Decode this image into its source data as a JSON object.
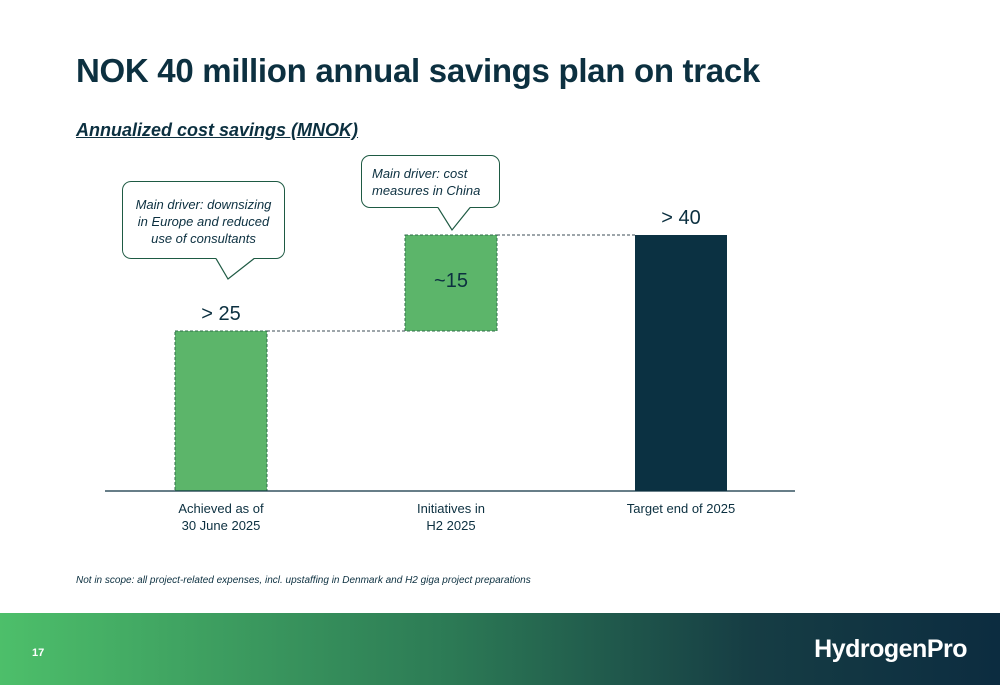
{
  "page": {
    "title": "NOK 40 million annual savings plan on track",
    "subtitle": "Annualized cost savings (MNOK)",
    "footnote": "Not in scope: all project-related expenses, incl. upstaffing in Denmark and H2 giga project preparations",
    "page_number": "17",
    "logo": "HydrogenPro"
  },
  "callouts": [
    {
      "text": "Main driver: downsizing in Europe and reduced use of consultants"
    },
    {
      "text": "Main driver: cost measures in China"
    }
  ],
  "chart_data": {
    "type": "bar",
    "subtype": "waterfall",
    "categories": [
      "Achieved as of 30 June 2025",
      "Initiatives in H2 2025",
      "Target end of 2025"
    ],
    "category_lines": [
      [
        "Achieved as of",
        "30 June 2025"
      ],
      [
        "Initiatives in",
        "H2 2025"
      ],
      [
        "Target end of 2025"
      ]
    ],
    "values": [
      25,
      15,
      40
    ],
    "bases": [
      0,
      25,
      0
    ],
    "data_labels": [
      "> 25",
      "~15",
      "> 40"
    ],
    "title": "",
    "xlabel": "",
    "ylabel": "",
    "ylim": [
      0,
      45
    ],
    "grid": false,
    "legend": "none",
    "colors": {
      "achieved": "#5cb56a",
      "initiatives": "#5cb56a",
      "target": "#0b3142",
      "connector": "#3c4c55",
      "bar_dash": "#2f6e4b"
    }
  }
}
